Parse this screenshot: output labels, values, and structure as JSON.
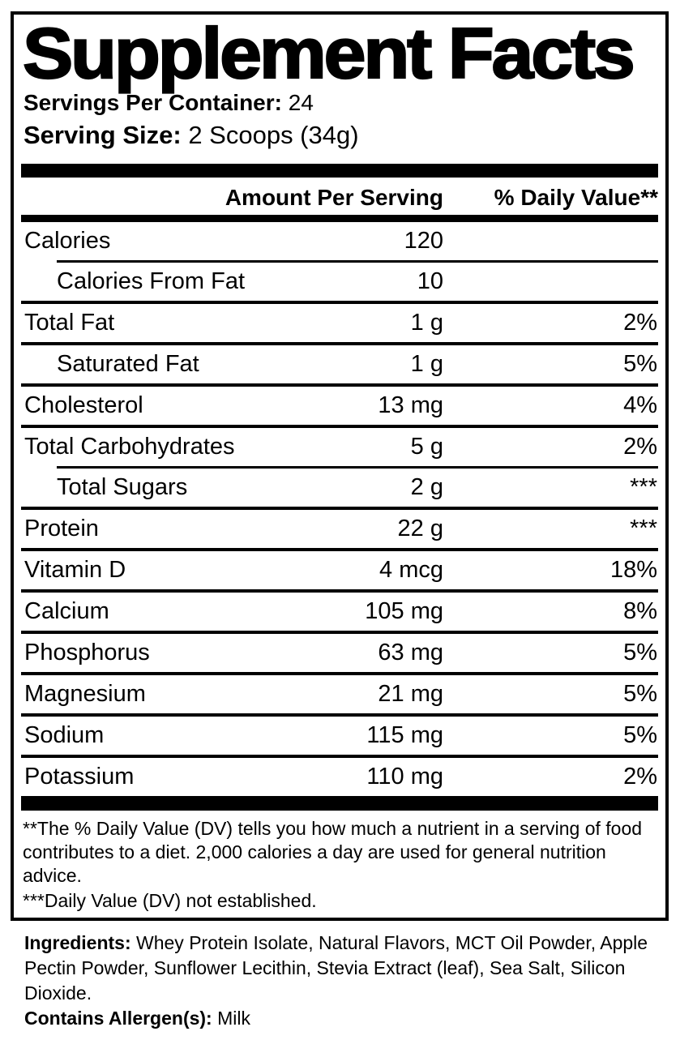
{
  "label": {
    "title": "Supplement Facts",
    "servings_per_container_label": "Servings Per Container:",
    "servings_per_container_value": "24",
    "serving_size_label": "Serving Size:",
    "serving_size_value": "2 Scoops (34g)",
    "columns": {
      "amount_header": "Amount Per Serving",
      "daily_value_header": "% Daily Value**"
    },
    "rows": [
      {
        "name": "Calories",
        "amount": "120",
        "dv": "",
        "indent": false,
        "sep": "single"
      },
      {
        "name": "Calories From Fat",
        "amount": "10",
        "dv": "",
        "indent": true,
        "sep": "full"
      },
      {
        "name": "Total Fat",
        "amount": "1 g",
        "dv": "2%",
        "indent": false,
        "sep": "full"
      },
      {
        "name": "Saturated Fat",
        "amount": "1 g",
        "dv": "5%",
        "indent": true,
        "sep": "full"
      },
      {
        "name": "Cholesterol",
        "amount": "13 mg",
        "dv": "4%",
        "indent": false,
        "sep": "full"
      },
      {
        "name": "Total Carbohydrates",
        "amount": "5 g",
        "dv": "2%",
        "indent": false,
        "sep": "single"
      },
      {
        "name": "Total Sugars",
        "amount": "2 g",
        "dv": "***",
        "indent": true,
        "sep": "full"
      },
      {
        "name": "Protein",
        "amount": "22 g",
        "dv": "***",
        "indent": false,
        "sep": "full"
      },
      {
        "name": "Vitamin D",
        "amount": "4 mcg",
        "dv": "18%",
        "indent": false,
        "sep": "full"
      },
      {
        "name": "Calcium",
        "amount": "105 mg",
        "dv": "8%",
        "indent": false,
        "sep": "full"
      },
      {
        "name": "Phosphorus",
        "amount": "63 mg",
        "dv": "5%",
        "indent": false,
        "sep": "full"
      },
      {
        "name": "Magnesium",
        "amount": "21 mg",
        "dv": "5%",
        "indent": false,
        "sep": "full"
      },
      {
        "name": "Sodium",
        "amount": "115 mg",
        "dv": "5%",
        "indent": false,
        "sep": "full"
      },
      {
        "name": "Potassium",
        "amount": "110 mg",
        "dv": "2%",
        "indent": false,
        "sep": "none"
      }
    ],
    "footnote_daily_value": "**The % Daily Value (DV) tells you how much a nutrient in a serving of food contributes to a diet. 2,000 calories a day are used for general nutrition advice.",
    "footnote_not_established": "***Daily Value (DV) not established."
  },
  "ingredients": {
    "label": "Ingredients:",
    "text": "Whey Protein Isolate, Natural Flavors, MCT Oil Powder, Apple Pectin Powder, Sunflower Lecithin, Stevia Extract (leaf), Sea Salt, Silicon Dioxide.",
    "allergen_label": "Contains Allergen(s):",
    "allergen_value": "Milk"
  },
  "colors": {
    "text": "#000000",
    "background": "#ffffff",
    "rule": "#000000"
  }
}
